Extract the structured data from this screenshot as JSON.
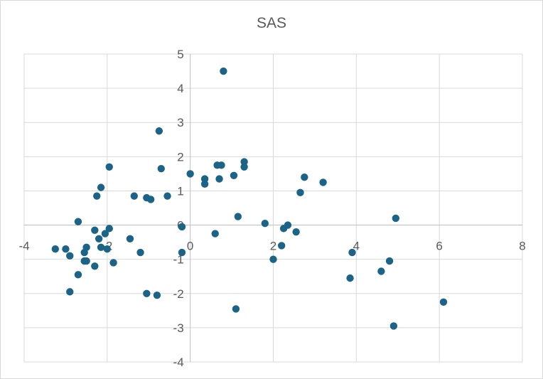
{
  "chart_data": {
    "type": "scatter",
    "title": "SAS",
    "xlabel": "",
    "ylabel": "",
    "xlim": [
      -4,
      8
    ],
    "ylim": [
      -4,
      5
    ],
    "x_ticks": [
      -4,
      -2,
      0,
      2,
      4,
      6,
      8
    ],
    "y_ticks": [
      -4,
      -3,
      -2,
      -1,
      0,
      1,
      2,
      3,
      4,
      5
    ],
    "grid": true,
    "legend": "none",
    "marker_color": "#1b6488",
    "points": [
      [
        -3.25,
        -0.7
      ],
      [
        -3.0,
        -0.7
      ],
      [
        -2.9,
        -0.9
      ],
      [
        -2.9,
        -1.95
      ],
      [
        -2.7,
        0.1
      ],
      [
        -2.7,
        -1.45
      ],
      [
        -2.55,
        -0.8
      ],
      [
        -2.5,
        -0.65
      ],
      [
        -2.5,
        -1.05
      ],
      [
        -2.55,
        -1.05
      ],
      [
        -2.3,
        -0.15
      ],
      [
        -2.3,
        -1.2
      ],
      [
        -2.25,
        0.85
      ],
      [
        -2.2,
        -0.4
      ],
      [
        -2.15,
        1.1
      ],
      [
        -2.15,
        -0.65
      ],
      [
        -2.05,
        -0.25
      ],
      [
        -2.0,
        -0.7
      ],
      [
        -1.95,
        -0.1
      ],
      [
        -1.95,
        1.7
      ],
      [
        -1.85,
        -1.1
      ],
      [
        -1.45,
        -0.4
      ],
      [
        -1.35,
        0.85
      ],
      [
        -1.2,
        -0.8
      ],
      [
        -1.05,
        0.8
      ],
      [
        -0.95,
        0.75
      ],
      [
        -1.05,
        -2.0
      ],
      [
        -0.75,
        2.75
      ],
      [
        -0.7,
        1.65
      ],
      [
        -0.8,
        -2.05
      ],
      [
        -0.55,
        0.85
      ],
      [
        -0.2,
        -0.05
      ],
      [
        -0.2,
        -0.8
      ],
      [
        0.0,
        1.5
      ],
      [
        0.35,
        1.35
      ],
      [
        0.35,
        1.2
      ],
      [
        0.6,
        -0.25
      ],
      [
        0.65,
        1.75
      ],
      [
        0.7,
        1.35
      ],
      [
        0.75,
        1.75
      ],
      [
        0.8,
        4.5
      ],
      [
        1.05,
        1.45
      ],
      [
        1.1,
        -2.45
      ],
      [
        1.15,
        0.25
      ],
      [
        1.3,
        1.7
      ],
      [
        1.3,
        1.85
      ],
      [
        1.8,
        0.05
      ],
      [
        2.0,
        -1.0
      ],
      [
        2.2,
        -0.6
      ],
      [
        2.25,
        -0.1
      ],
      [
        2.35,
        0.0
      ],
      [
        2.55,
        -0.2
      ],
      [
        2.65,
        0.95
      ],
      [
        2.75,
        1.4
      ],
      [
        3.2,
        1.25
      ],
      [
        3.85,
        -1.55
      ],
      [
        3.9,
        -0.8
      ],
      [
        4.6,
        -1.35
      ],
      [
        4.8,
        -1.05
      ],
      [
        4.9,
        -2.95
      ],
      [
        4.95,
        0.2
      ],
      [
        6.1,
        -2.25
      ]
    ]
  }
}
